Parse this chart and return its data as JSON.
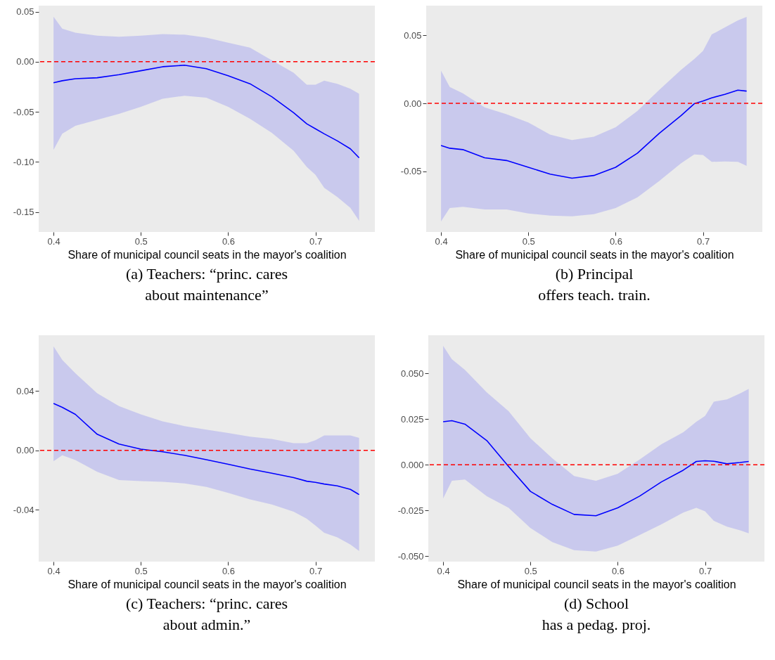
{
  "chart_data": [
    {
      "type": "line",
      "title": "(a) Teachers: “princ. cares\nabout maintenance”",
      "xlabel": "Share of municipal council seats in the mayor's coalition",
      "xlim": [
        0.383,
        0.768
      ],
      "xticks": [
        0.4,
        0.5,
        0.6,
        0.7
      ],
      "ylim": [
        -0.17,
        0.056
      ],
      "yticks": [
        {
          "value": -0.15,
          "label": "-0.15"
        },
        {
          "value": -0.1,
          "label": "-0.10"
        },
        {
          "value": -0.05,
          "label": "-0.05"
        },
        {
          "value": 0,
          "label": "0.00"
        },
        {
          "value": 0.05,
          "label": "0.05"
        }
      ],
      "ref_lines": [
        {
          "axis": "y",
          "value": 0,
          "color": "#ff0000",
          "line_style": "dashed"
        }
      ],
      "x": [
        0.4,
        0.41,
        0.425,
        0.45,
        0.475,
        0.5,
        0.525,
        0.55,
        0.575,
        0.6,
        0.625,
        0.65,
        0.675,
        0.69,
        0.7,
        0.71,
        0.725,
        0.74,
        0.75
      ],
      "series": [
        {
          "color": "#0000ff",
          "values": [
            -0.021,
            -0.019,
            -0.017,
            -0.016,
            -0.013,
            -0.009,
            -0.005,
            -0.0035,
            -0.007,
            -0.014,
            -0.022,
            -0.035,
            -0.051,
            -0.062,
            -0.067,
            -0.072,
            -0.079,
            -0.087,
            -0.096
          ],
          "upper": [
            0.045,
            0.033,
            0.029,
            0.026,
            0.025,
            0.026,
            0.0275,
            0.027,
            0.024,
            0.019,
            0.014,
            0.0015,
            -0.011,
            -0.023,
            -0.023,
            -0.019,
            -0.022,
            -0.027,
            -0.032
          ],
          "lower": [
            -0.088,
            -0.072,
            -0.064,
            -0.058,
            -0.052,
            -0.045,
            -0.037,
            -0.034,
            -0.036,
            -0.045,
            -0.057,
            -0.071,
            -0.089,
            -0.105,
            -0.113,
            -0.126,
            -0.135,
            -0.146,
            -0.159
          ]
        }
      ]
    },
    {
      "type": "line",
      "title": "(b) Principal\noffers teach. train.",
      "xlabel": "Share of municipal council seats in the mayor's coalition",
      "xlim": [
        0.383,
        0.768
      ],
      "xticks": [
        0.4,
        0.5,
        0.6,
        0.7
      ],
      "ylim": [
        -0.0945,
        0.0718
      ],
      "yticks": [
        {
          "value": -0.05,
          "label": "-0.05"
        },
        {
          "value": 0,
          "label": "0.00"
        },
        {
          "value": 0.05,
          "label": "0.05"
        }
      ],
      "ref_lines": [
        {
          "axis": "y",
          "value": 0,
          "color": "#ff0000",
          "line_style": "dashed"
        }
      ],
      "x": [
        0.4,
        0.41,
        0.425,
        0.45,
        0.475,
        0.5,
        0.525,
        0.55,
        0.575,
        0.6,
        0.625,
        0.65,
        0.675,
        0.69,
        0.7,
        0.71,
        0.725,
        0.74,
        0.75
      ],
      "series": [
        {
          "color": "#0000ff",
          "values": [
            -0.031,
            -0.033,
            -0.034,
            -0.04,
            -0.042,
            -0.047,
            -0.052,
            -0.055,
            -0.053,
            -0.047,
            -0.0366,
            -0.022,
            -0.009,
            -0.0003,
            0.0017,
            0.004,
            0.0066,
            0.0097,
            0.009
          ],
          "upper": [
            0.024,
            0.012,
            0.0074,
            -0.003,
            -0.008,
            -0.014,
            -0.023,
            -0.027,
            -0.0245,
            -0.0176,
            -0.0055,
            0.01,
            0.0247,
            0.0325,
            0.0385,
            0.0506,
            0.0558,
            0.061,
            0.0636
          ],
          "lower": [
            -0.0867,
            -0.077,
            -0.076,
            -0.078,
            -0.078,
            -0.081,
            -0.0825,
            -0.083,
            -0.0815,
            -0.077,
            -0.069,
            -0.057,
            -0.044,
            -0.0375,
            -0.038,
            -0.043,
            -0.0427,
            -0.043,
            -0.046
          ]
        }
      ]
    },
    {
      "type": "line",
      "title": "(c) Teachers: “princ. cares\nabout admin.”",
      "xlabel": "Share of municipal council seats in the mayor's coalition",
      "xlim": [
        0.383,
        0.768
      ],
      "xticks": [
        0.4,
        0.5,
        0.6,
        0.7
      ],
      "ylim": [
        -0.0748,
        0.0775
      ],
      "yticks": [
        {
          "value": -0.04,
          "label": "-0.04"
        },
        {
          "value": 0,
          "label": "0.00"
        },
        {
          "value": 0.04,
          "label": "0.04"
        }
      ],
      "ref_lines": [
        {
          "axis": "y",
          "value": 0,
          "color": "#ff0000",
          "line_style": "dashed"
        }
      ],
      "x": [
        0.4,
        0.41,
        0.425,
        0.45,
        0.475,
        0.5,
        0.525,
        0.55,
        0.575,
        0.6,
        0.625,
        0.65,
        0.675,
        0.69,
        0.7,
        0.71,
        0.725,
        0.74,
        0.75
      ],
      "series": [
        {
          "color": "#0000ff",
          "values": [
            0.0316,
            0.029,
            0.0243,
            0.0109,
            0.0043,
            0.0009,
            -0.0009,
            -0.0033,
            -0.0062,
            -0.0093,
            -0.0125,
            -0.0153,
            -0.0183,
            -0.0207,
            -0.0215,
            -0.0226,
            -0.0238,
            -0.0262,
            -0.0297
          ],
          "upper": [
            0.07,
            0.061,
            0.052,
            0.0385,
            0.0298,
            0.0243,
            0.0196,
            0.0164,
            0.014,
            0.0117,
            0.0093,
            0.0077,
            0.0049,
            0.0049,
            0.0069,
            0.0101,
            0.0101,
            0.0101,
            0.0085
          ],
          "lower": [
            -0.0073,
            -0.0033,
            -0.0065,
            -0.0144,
            -0.0199,
            -0.0207,
            -0.0211,
            -0.0222,
            -0.0246,
            -0.0286,
            -0.033,
            -0.0364,
            -0.0412,
            -0.0459,
            -0.0506,
            -0.0554,
            -0.0585,
            -0.0633,
            -0.0677
          ]
        }
      ]
    },
    {
      "type": "line",
      "title": "(d) School\nhas a pedag. proj.",
      "xlabel": "Share of municipal council seats in the mayor's coalition",
      "xlim": [
        0.383,
        0.768
      ],
      "xticks": [
        0.4,
        0.5,
        0.6,
        0.7
      ],
      "ylim": [
        -0.053,
        0.0708
      ],
      "yticks": [
        {
          "value": -0.05,
          "label": "-0.050"
        },
        {
          "value": -0.025,
          "label": "-0.025"
        },
        {
          "value": 0,
          "label": "0.000"
        },
        {
          "value": 0.025,
          "label": "0.025"
        },
        {
          "value": 0.05,
          "label": "0.050"
        }
      ],
      "ref_lines": [
        {
          "axis": "y",
          "value": 0,
          "color": "#ff0000",
          "line_style": "dashed"
        }
      ],
      "x": [
        0.4,
        0.41,
        0.425,
        0.45,
        0.475,
        0.5,
        0.525,
        0.55,
        0.575,
        0.6,
        0.625,
        0.65,
        0.675,
        0.69,
        0.7,
        0.71,
        0.725,
        0.74,
        0.75
      ],
      "series": [
        {
          "color": "#0000ff",
          "values": [
            0.0235,
            0.0241,
            0.0222,
            0.0132,
            -0.001,
            -0.0146,
            -0.0217,
            -0.0272,
            -0.0279,
            -0.0236,
            -0.0172,
            -0.0094,
            -0.003,
            0.0018,
            0.0022,
            0.0019,
            0.0005,
            0.0012,
            0.0018
          ],
          "upper": [
            0.065,
            0.0577,
            0.0519,
            0.0396,
            0.0293,
            0.0145,
            0.0035,
            -0.0062,
            -0.0088,
            -0.0049,
            0.0028,
            0.0112,
            0.0177,
            0.0235,
            0.0267,
            0.0345,
            0.0357,
            0.039,
            0.0415
          ],
          "lower": [
            -0.0185,
            -0.0088,
            -0.0081,
            -0.0172,
            -0.0236,
            -0.0346,
            -0.0423,
            -0.0468,
            -0.0475,
            -0.0443,
            -0.0385,
            -0.0326,
            -0.0262,
            -0.0236,
            -0.0255,
            -0.0307,
            -0.0339,
            -0.0359,
            -0.0375
          ]
        }
      ]
    }
  ]
}
